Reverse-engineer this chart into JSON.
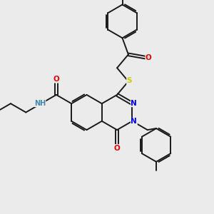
{
  "bg_color": "#ebebeb",
  "bond_color": "#1a1a1a",
  "bond_width": 1.4,
  "N_color": "#0000ee",
  "O_color": "#ee0000",
  "S_color": "#cccc00",
  "NH_color": "#4488aa",
  "font_size_atom": 7.5,
  "fig_size": [
    3.0,
    3.0
  ],
  "dpi": 100,
  "xlim": [
    0,
    10
  ],
  "ylim": [
    0,
    10
  ]
}
